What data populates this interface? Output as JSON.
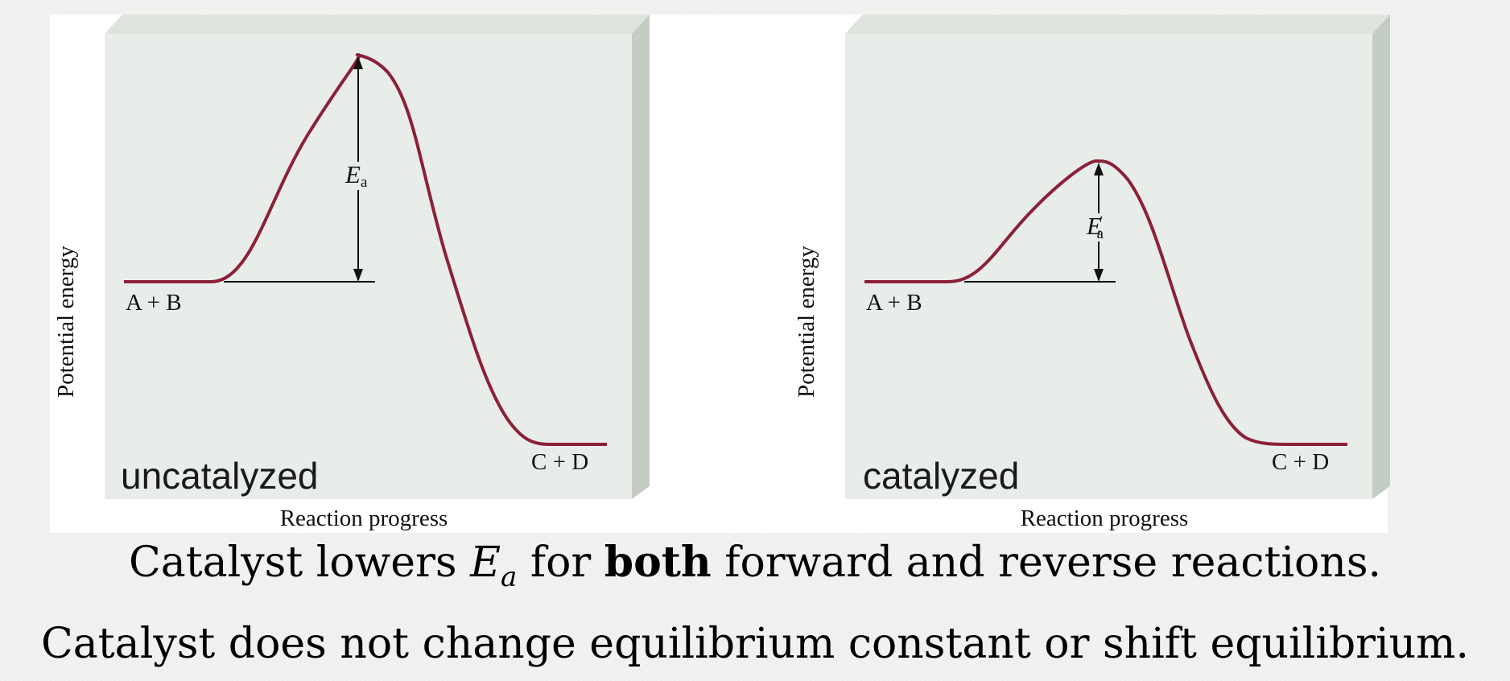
{
  "diagrams": [
    {
      "tag": "uncatalyzed",
      "y_axis_label": "Potential energy",
      "x_axis_label": "Reaction progress",
      "reactants_label": "A + B",
      "products_label": "C + D",
      "activation_symbol": "E",
      "activation_subscript": "a",
      "activation_prime": ""
    },
    {
      "tag": "catalyzed",
      "y_axis_label": "Potential energy",
      "x_axis_label": "Reaction progress",
      "reactants_label": "A + B",
      "products_label": "C + D",
      "activation_symbol": "E",
      "activation_subscript": "a",
      "activation_prime": "′"
    }
  ],
  "captions": {
    "line1": {
      "before": "Catalyst lowers ",
      "symbol": "E",
      "subscript": "a",
      "middle": " for ",
      "bold": "both",
      "after": " forward and reverse reactions."
    },
    "line2": "Catalyst does not change equilibrium constant or shift equilibrium."
  },
  "colors": {
    "curve": "#8c2038",
    "panel_front": "#e9ede9",
    "panel_side": "#c4cdc4",
    "panel_top": "#dde3dd"
  }
}
